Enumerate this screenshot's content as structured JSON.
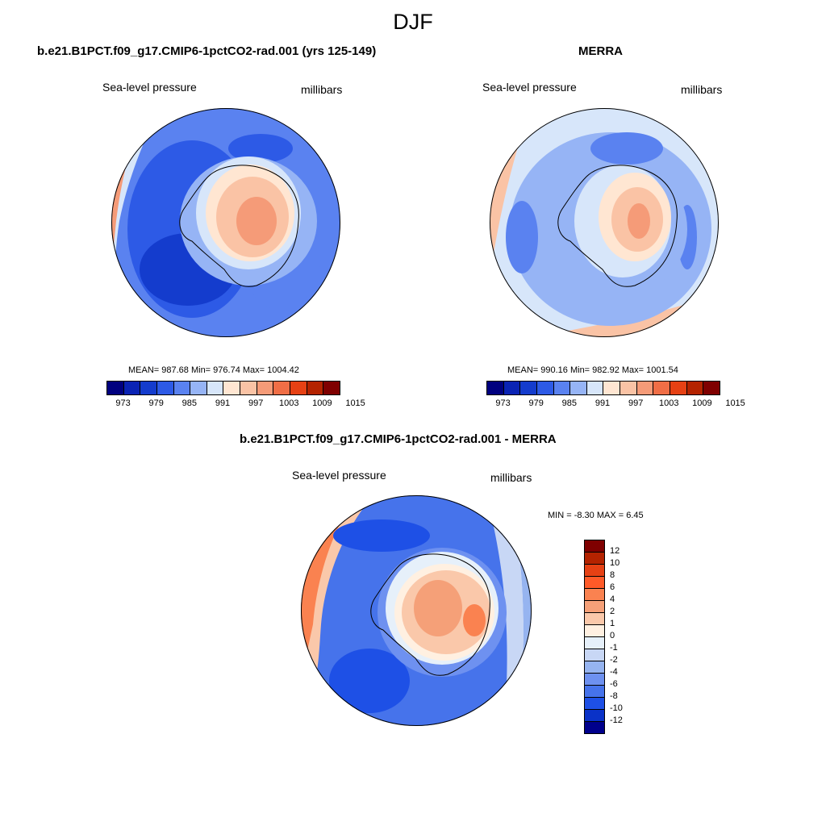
{
  "title": "DJF",
  "panels": {
    "model": {
      "heading": "b.e21.B1PCT.f09_g17.CMIP6-1pctCO2-rad.001 (yrs 125-149)",
      "left_label": "Sea-level pressure",
      "right_label": "millibars",
      "stats": "MEAN= 987.68  Min= 976.74  Max= 1004.42"
    },
    "obs": {
      "heading": "MERRA",
      "left_label": "Sea-level pressure",
      "right_label": "millibars",
      "stats": "MEAN= 990.16  Min= 982.92  Max= 1001.54"
    },
    "diff": {
      "heading": "b.e21.B1PCT.f09_g17.CMIP6-1pctCO2-rad.001 - MERRA",
      "left_label": "Sea-level pressure",
      "right_label": "millibars",
      "stats": "MIN =  -8.30 MAX =   6.45"
    }
  },
  "colorbar_abs": {
    "colors": [
      "#00007f",
      "#0a23b4",
      "#143ccd",
      "#2d5ae6",
      "#5a82f0",
      "#96b4f5",
      "#d7e6fa",
      "#ffe6d2",
      "#fac3a5",
      "#f59b78",
      "#f06e46",
      "#e64114",
      "#b42300",
      "#7f0000"
    ],
    "labels": [
      "973",
      "979",
      "985",
      "991",
      "997",
      "1003",
      "1009",
      "1015"
    ]
  },
  "colorbar_diff": {
    "colors": [
      "#7f0000",
      "#b42300",
      "#e64114",
      "#ff5a28",
      "#fa8250",
      "#f5a078",
      "#fac8aa",
      "#fff0e1",
      "#e6f0fa",
      "#c8d7f5",
      "#96b4f0",
      "#6e91f0",
      "#4673eb",
      "#1e50e6",
      "#0a32c8",
      "#00008c"
    ],
    "labels": [
      "12",
      "10",
      "8",
      "6",
      "4",
      "2",
      "1",
      "0",
      "-1",
      "-2",
      "-4",
      "-6",
      "-8",
      "-10",
      "-12"
    ]
  }
}
